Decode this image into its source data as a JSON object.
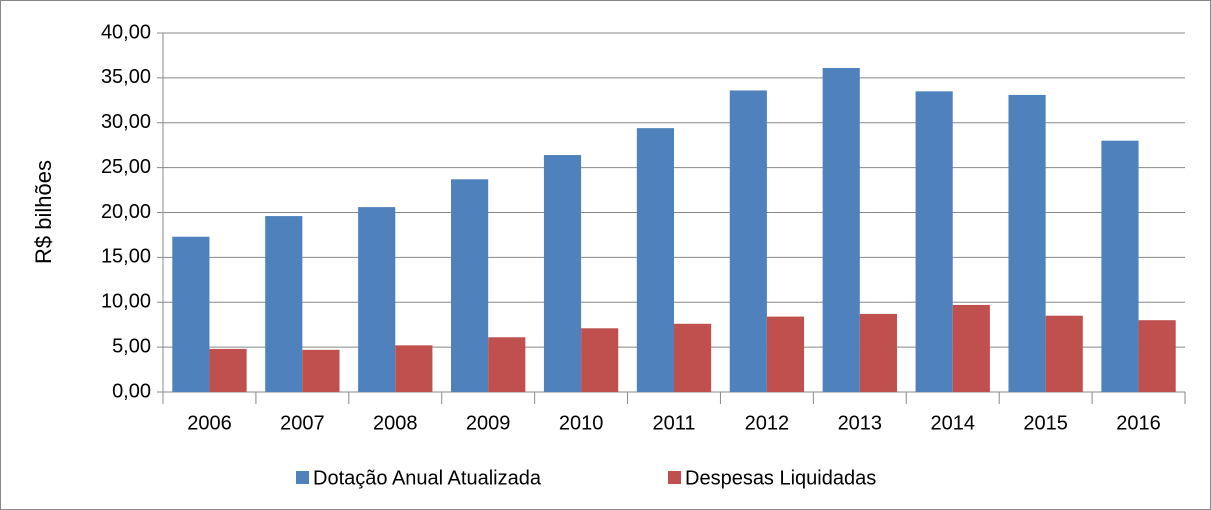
{
  "chart_data": {
    "type": "bar",
    "y_label": "R$ bilhões",
    "categories": [
      "2006",
      "2007",
      "2008",
      "2009",
      "2010",
      "2011",
      "2012",
      "2013",
      "2014",
      "2015",
      "2016"
    ],
    "series": [
      {
        "name": "Dotação Anual Atualizada",
        "color": "#4f81bd",
        "values": [
          17.3,
          19.6,
          20.6,
          23.7,
          26.4,
          29.4,
          33.6,
          36.1,
          33.5,
          33.1,
          28.0
        ]
      },
      {
        "name": "Despesas Liquidadas",
        "color": "#c0504d",
        "values": [
          4.8,
          4.7,
          5.2,
          6.1,
          7.1,
          7.6,
          8.4,
          8.7,
          9.7,
          8.5,
          8.0
        ]
      }
    ],
    "ylim": [
      0,
      40
    ],
    "yticks": [
      {
        "value": 0,
        "label": "0,00"
      },
      {
        "value": 5,
        "label": "5,00"
      },
      {
        "value": 10,
        "label": "10,00"
      },
      {
        "value": 15,
        "label": "15,00"
      },
      {
        "value": 20,
        "label": "20,00"
      },
      {
        "value": 25,
        "label": "25,00"
      },
      {
        "value": 30,
        "label": "30,00"
      },
      {
        "value": 35,
        "label": "35,00"
      },
      {
        "value": 40,
        "label": "40,00"
      }
    ],
    "grid": true,
    "legend": "bottom"
  }
}
